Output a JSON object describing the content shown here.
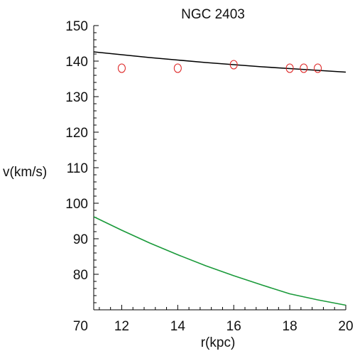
{
  "chart_data": {
    "type": "line",
    "title": "NGC 2403",
    "xlabel": "r(kpc)",
    "ylabel": "v(km/s)",
    "xlim": [
      11,
      20
    ],
    "ylim": [
      70,
      150
    ],
    "xticks": [
      12,
      14,
      16,
      18,
      20
    ],
    "yticks": [
      70,
      80,
      90,
      100,
      110,
      120,
      130,
      140,
      150
    ],
    "grid": false,
    "legend": "none",
    "series": [
      {
        "style": "line",
        "color": "#000000",
        "x": [
          11,
          12,
          13,
          14,
          15,
          16,
          17,
          18,
          19,
          20
        ],
        "y": [
          142.6,
          141.8,
          141.0,
          140.3,
          139.6,
          139.0,
          138.4,
          137.9,
          137.4,
          136.9
        ]
      },
      {
        "style": "line",
        "color": "#1a9a3a",
        "x": [
          11,
          12,
          13,
          14,
          15,
          16,
          17,
          18,
          19,
          20
        ],
        "y": [
          96.2,
          92.4,
          88.8,
          85.5,
          82.4,
          79.6,
          77.0,
          74.5,
          72.8,
          71.3
        ]
      },
      {
        "style": "scatter",
        "marker": "open-circle",
        "color": "#dd2222",
        "x": [
          12,
          14,
          16,
          18,
          18.5,
          19
        ],
        "y": [
          138,
          138,
          139,
          138,
          138,
          138
        ]
      }
    ]
  }
}
